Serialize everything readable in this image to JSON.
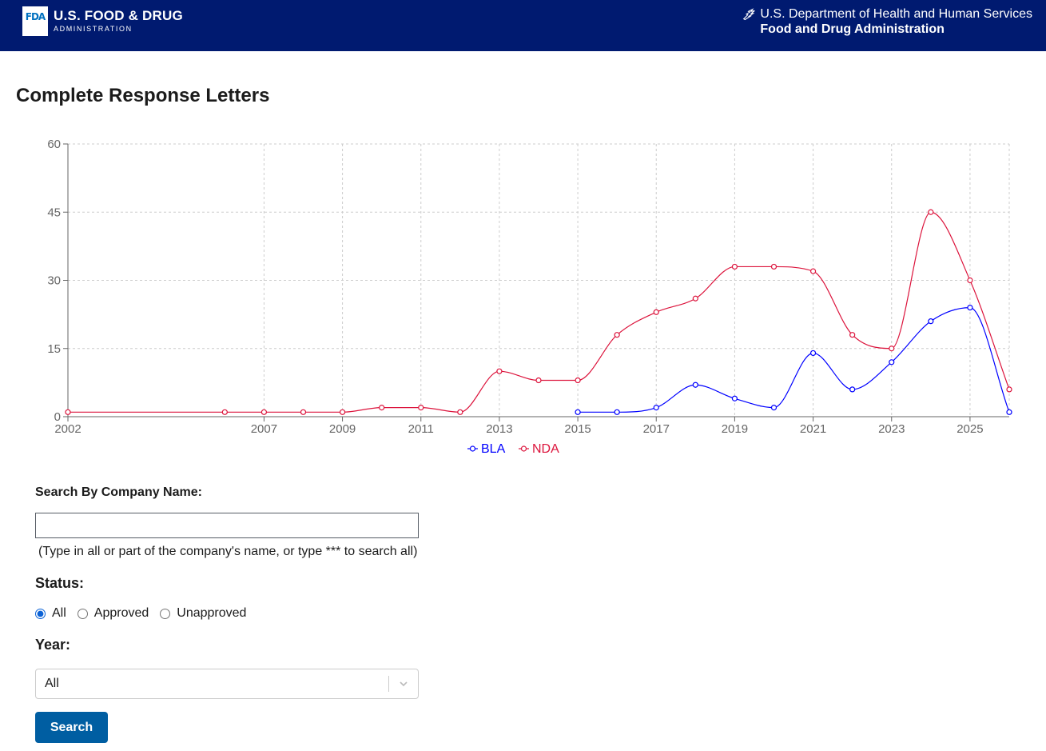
{
  "header": {
    "logo_mark": "FDA",
    "logo_title": "U.S. FOOD & DRUG",
    "logo_subtitle": "ADMINISTRATION",
    "dept_line1": "U.S. Department of Health and Human Services",
    "dept_line2": "Food and Drug Administration",
    "background_color": "#001a70"
  },
  "page": {
    "title": "Complete Response Letters"
  },
  "chart_data": {
    "type": "line",
    "title": "",
    "xlabel": "",
    "ylabel": "",
    "xlim": [
      2002,
      2026
    ],
    "ylim": [
      0,
      60
    ],
    "x_ticks": [
      2002,
      2007,
      2009,
      2011,
      2013,
      2015,
      2017,
      2019,
      2021,
      2023,
      2025
    ],
    "y_ticks": [
      0,
      15,
      30,
      45,
      60
    ],
    "grid": true,
    "legend_position": "bottom-center",
    "series": [
      {
        "name": "BLA",
        "color": "#0000ff",
        "points": [
          {
            "x": 2015,
            "y": 1
          },
          {
            "x": 2016,
            "y": 1
          },
          {
            "x": 2017,
            "y": 2
          },
          {
            "x": 2018,
            "y": 7
          },
          {
            "x": 2019,
            "y": 4
          },
          {
            "x": 2020,
            "y": 2
          },
          {
            "x": 2021,
            "y": 14
          },
          {
            "x": 2022,
            "y": 6
          },
          {
            "x": 2023,
            "y": 12
          },
          {
            "x": 2024,
            "y": 21
          },
          {
            "x": 2025,
            "y": 24
          },
          {
            "x": 2026,
            "y": 1
          }
        ]
      },
      {
        "name": "NDA",
        "color": "#dc143c",
        "points": [
          {
            "x": 2002,
            "y": 1
          },
          {
            "x": 2006,
            "y": 1
          },
          {
            "x": 2007,
            "y": 1
          },
          {
            "x": 2008,
            "y": 1
          },
          {
            "x": 2009,
            "y": 1
          },
          {
            "x": 2010,
            "y": 2
          },
          {
            "x": 2011,
            "y": 2
          },
          {
            "x": 2012,
            "y": 1
          },
          {
            "x": 2013,
            "y": 10
          },
          {
            "x": 2014,
            "y": 8
          },
          {
            "x": 2015,
            "y": 8
          },
          {
            "x": 2016,
            "y": 18
          },
          {
            "x": 2017,
            "y": 23
          },
          {
            "x": 2018,
            "y": 26
          },
          {
            "x": 2019,
            "y": 33
          },
          {
            "x": 2020,
            "y": 33
          },
          {
            "x": 2021,
            "y": 32
          },
          {
            "x": 2022,
            "y": 18
          },
          {
            "x": 2023,
            "y": 15
          },
          {
            "x": 2024,
            "y": 45
          },
          {
            "x": 2025,
            "y": 30
          },
          {
            "x": 2026,
            "y": 6
          }
        ]
      }
    ]
  },
  "form": {
    "company_label": "Search By Company Name:",
    "company_value": "",
    "company_hint": "(Type in all or part of the company's name, or type *** to search all)",
    "status_label": "Status:",
    "status_options": [
      {
        "label": "All",
        "checked": true
      },
      {
        "label": "Approved",
        "checked": false
      },
      {
        "label": "Unapproved",
        "checked": false
      }
    ],
    "year_label": "Year:",
    "year_selected": "All",
    "search_label": "Search",
    "button_color": "#005ea2"
  }
}
